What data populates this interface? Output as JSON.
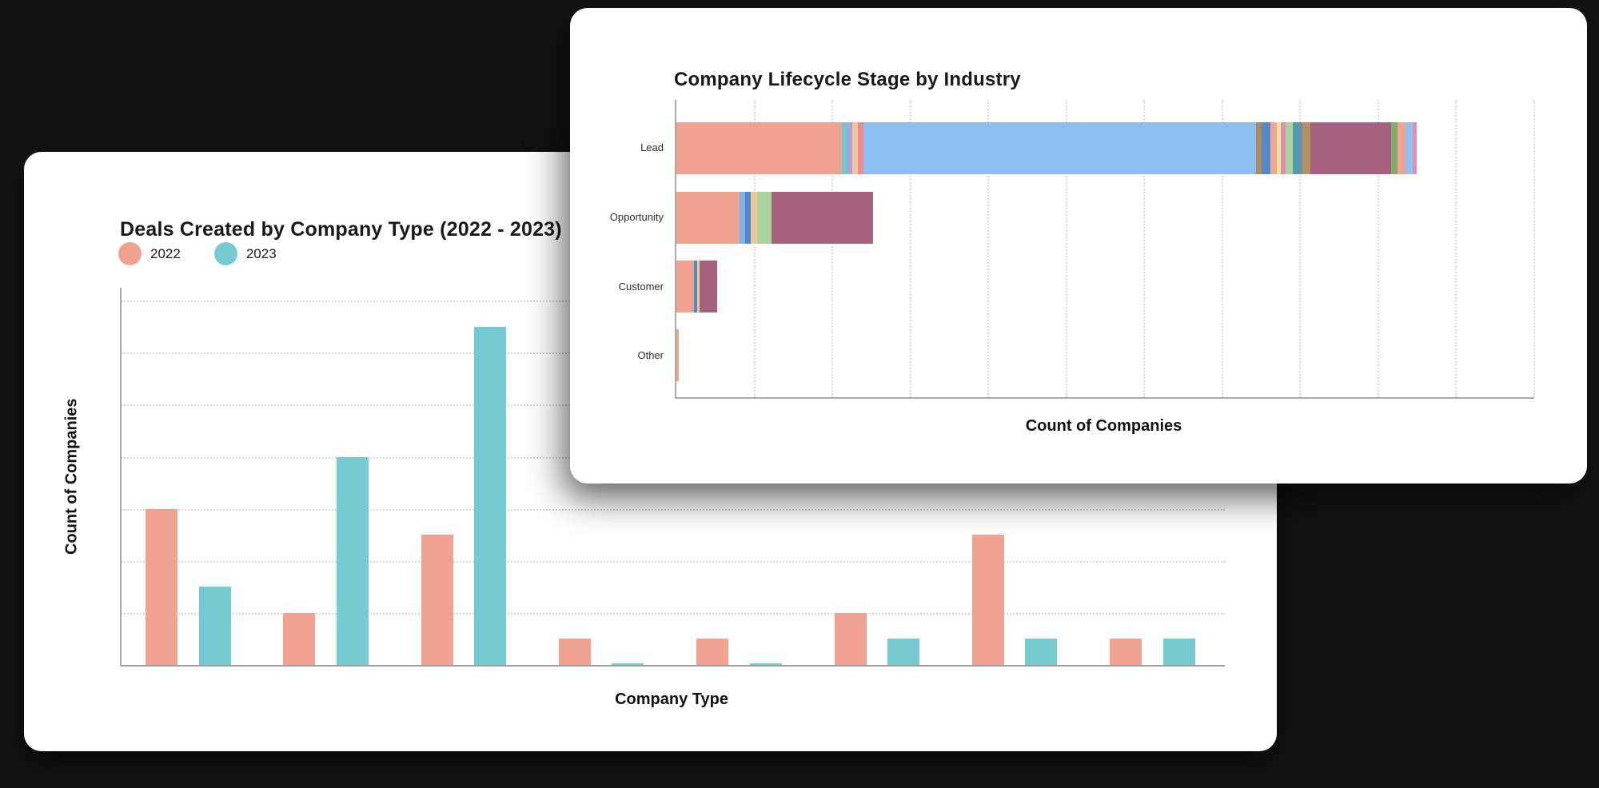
{
  "background_color": "#131313",
  "chart_data": [
    {
      "id": "deals-created-by-company-type",
      "type": "bar",
      "title": "Deals Created by Company Type (2022 - 2023)",
      "xlabel": "Company Type",
      "ylabel": "Count of Companies",
      "legend_position": "top-left",
      "grid": "horizontal dotted gridlines, no tick labels visible",
      "axis_tick_labels_visible": false,
      "n_groups": 8,
      "ylim": [
        0,
        14.5
      ],
      "gridline_step": 2,
      "series": [
        {
          "name": "2022",
          "color": "#EEA28F",
          "values": [
            6,
            2,
            5,
            1,
            1,
            2,
            5,
            1
          ]
        },
        {
          "name": "2023",
          "color": "#76CBD1",
          "values": [
            3,
            8,
            13,
            0.05,
            0.05,
            1,
            1,
            1
          ]
        }
      ]
    },
    {
      "id": "company-lifecycle-stage-by-industry",
      "type": "bar-horizontal-stacked",
      "title": "Company Lifecycle Stage by Industry",
      "xlabel": "Count of Companies",
      "ylabel": "",
      "grid": "vertical dotted gridlines, no tick labels visible",
      "axis_tick_labels_visible": false,
      "legend_position": "none",
      "xlim": [
        0,
        11
      ],
      "gridline_step": 1,
      "categories": [
        "Lead",
        "Opportunity",
        "Customer",
        "Other"
      ],
      "rows": [
        {
          "category": "Lead",
          "segments": [
            {
              "color": "#EFA192",
              "value": 2.12
            },
            {
              "color": "#6EC8CD",
              "value": 0.06
            },
            {
              "color": "#A9A3DB",
              "value": 0.08
            },
            {
              "color": "#ECC79B",
              "value": 0.07
            },
            {
              "color": "#E98A90",
              "value": 0.07
            },
            {
              "color": "#8CBEF2",
              "value": 5.03
            },
            {
              "color": "#A68B61",
              "value": 0.07
            },
            {
              "color": "#5588CB",
              "value": 0.12
            },
            {
              "color": "#F0A493",
              "value": 0.08
            },
            {
              "color": "#F1E29C",
              "value": 0.05
            },
            {
              "color": "#DF8DB4",
              "value": 0.06
            },
            {
              "color": "#A9D29F",
              "value": 0.09
            },
            {
              "color": "#4F9CA9",
              "value": 0.09
            },
            {
              "color": "#6E8CB8",
              "value": 0.04
            },
            {
              "color": "#B3905E",
              "value": 0.1
            },
            {
              "color": "#A5617E",
              "value": 1.03
            },
            {
              "color": "#82AB69",
              "value": 0.09
            },
            {
              "color": "#F0A493",
              "value": 0.1
            },
            {
              "color": "#8FC2F2",
              "value": 0.09
            },
            {
              "color": "#E292AA",
              "value": 0.05
            }
          ]
        },
        {
          "category": "Opportunity",
          "segments": [
            {
              "color": "#EFA192",
              "value": 0.81
            },
            {
              "color": "#7FB2E9",
              "value": 0.07
            },
            {
              "color": "#5588CB",
              "value": 0.07
            },
            {
              "color": "#ECC79B",
              "value": 0.09
            },
            {
              "color": "#A9D29F",
              "value": 0.18
            },
            {
              "color": "#A5617E",
              "value": 1.3
            }
          ]
        },
        {
          "category": "Customer",
          "segments": [
            {
              "color": "#EFA192",
              "value": 0.23
            },
            {
              "color": "#5588CB",
              "value": 0.04
            },
            {
              "color": "#E5D28B",
              "value": 0.03
            },
            {
              "color": "#A5617E",
              "value": 0.22
            }
          ]
        },
        {
          "category": "Other",
          "segments": [
            {
              "color": "#EFA192",
              "value": 0.03
            }
          ]
        }
      ]
    }
  ]
}
